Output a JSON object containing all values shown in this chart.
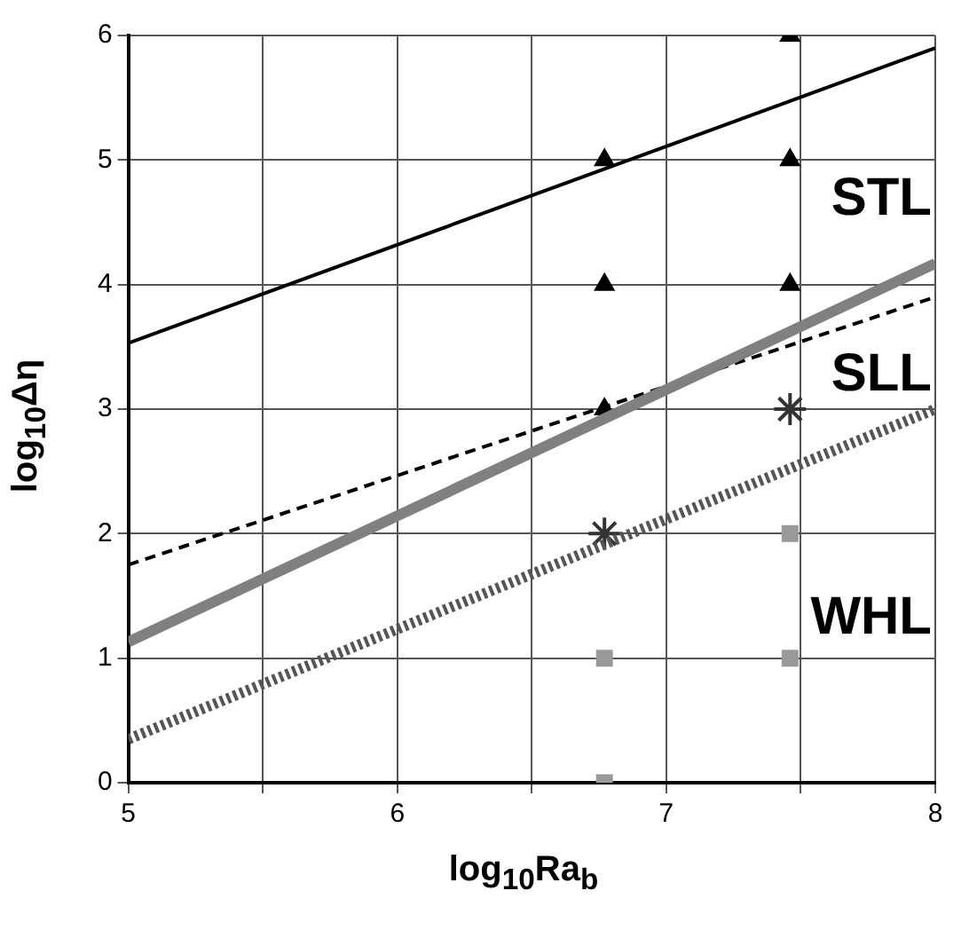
{
  "chart_data": {
    "type": "scatter",
    "xlabel": "log$_{10}$Ra$_{b}$",
    "ylabel": "log$_{10}$Δη",
    "xlim": [
      5,
      8
    ],
    "ylim": [
      0,
      6
    ],
    "xticks": [
      5,
      {
        "value": 5.5,
        "label": null
      },
      6,
      {
        "value": 6.5,
        "label": null
      },
      7,
      {
        "value": 7.5,
        "label": null
      },
      8
    ],
    "yticks": [
      0,
      1,
      2,
      3,
      4,
      5,
      6
    ],
    "grid": true,
    "legend": false,
    "annotations": [
      "STL",
      "SLL",
      "WHL"
    ],
    "series": [
      {
        "type": "line",
        "x": [
          5,
          8
        ],
        "values": [
          3.53,
          5.9
        ],
        "color": "#000000",
        "line_style": "solid",
        "marker": "none"
      },
      {
        "type": "line",
        "x": [
          5,
          8
        ],
        "values": [
          1.13,
          4.17
        ],
        "color": "#808080",
        "line_style": "solid",
        "marker": "none"
      },
      {
        "type": "line",
        "x": [
          5,
          8
        ],
        "values": [
          1.75,
          3.9
        ],
        "color": "#000000",
        "line_style": "dashed",
        "marker": "none"
      },
      {
        "type": "line",
        "x": [
          5,
          8
        ],
        "values": [
          0.35,
          3.0
        ],
        "color": "#555555",
        "line_style": "dotted",
        "marker": "none"
      },
      {
        "type": "scatter",
        "x": [
          6.77,
          6.77,
          6.77,
          7.46,
          7.46,
          7.46
        ],
        "values": [
          5,
          4,
          3,
          6,
          5,
          4
        ],
        "color": "#000000",
        "marker": "triangle"
      },
      {
        "type": "scatter",
        "x": [
          6.77,
          7.46
        ],
        "values": [
          2,
          3
        ],
        "color": "#333333",
        "marker": "cross"
      },
      {
        "type": "scatter",
        "x": [
          6.77,
          6.77,
          7.46,
          7.46
        ],
        "values": [
          1,
          0,
          2,
          1
        ],
        "color": "#999999",
        "marker": "square"
      }
    ]
  }
}
